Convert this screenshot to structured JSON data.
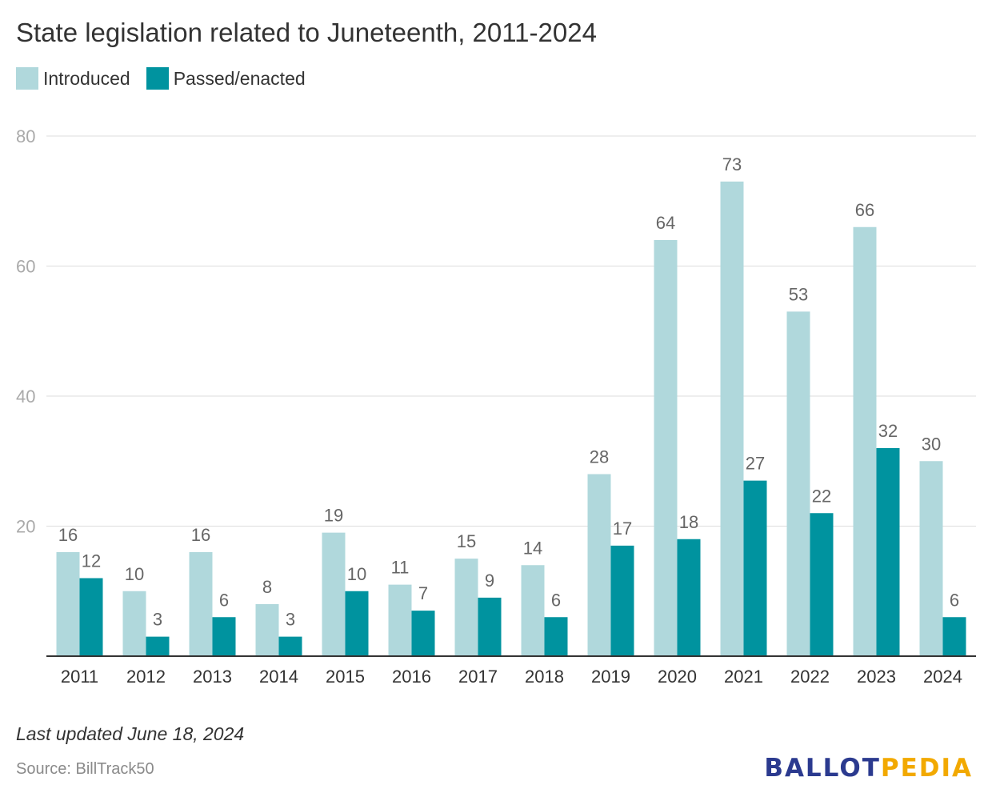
{
  "title": "State legislation related to Juneteenth, 2011-2024",
  "footnote": "Last updated June 18, 2024",
  "source": "Source: BillTrack50",
  "logo": {
    "part1": "BALLOT",
    "part2": "PEDIA"
  },
  "colors": {
    "introduced": "#b0d8dc",
    "passed": "#00939f",
    "grid": "#dddddd",
    "axis": "#333333"
  },
  "chart_data": {
    "type": "bar",
    "categories": [
      "2011",
      "2012",
      "2013",
      "2014",
      "2015",
      "2016",
      "2017",
      "2018",
      "2019",
      "2020",
      "2021",
      "2022",
      "2023",
      "2024"
    ],
    "series": [
      {
        "name": "Introduced",
        "values": [
          16,
          10,
          16,
          8,
          19,
          11,
          15,
          14,
          28,
          64,
          73,
          53,
          66,
          30
        ]
      },
      {
        "name": "Passed/enacted",
        "values": [
          12,
          3,
          6,
          3,
          10,
          7,
          9,
          6,
          17,
          18,
          27,
          22,
          32,
          6
        ]
      }
    ],
    "yticks": [
      20,
      40,
      60,
      80
    ],
    "ylim": [
      0,
      80
    ],
    "grid": true,
    "legend": "top-left",
    "data_labels": true
  }
}
